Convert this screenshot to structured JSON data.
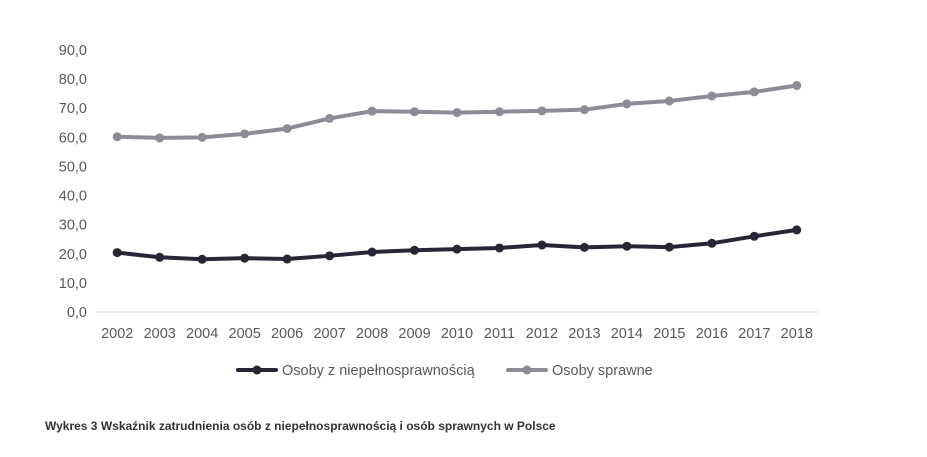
{
  "chart_data": {
    "type": "line",
    "title": "",
    "xlabel": "",
    "ylabel": "",
    "x": [
      "2002",
      "2003",
      "2004",
      "2005",
      "2006",
      "2007",
      "2008",
      "2009",
      "2010",
      "2011",
      "2012",
      "2013",
      "2014",
      "2015",
      "2016",
      "2017",
      "2018"
    ],
    "ylim": [
      0,
      90
    ],
    "y_ticks": [
      "0,0",
      "10,0",
      "20,0",
      "30,0",
      "40,0",
      "50,0",
      "60,0",
      "70,0",
      "80,0",
      "90,0"
    ],
    "grid": false,
    "legend_position": "bottom",
    "series": [
      {
        "name": "Osoby z niepełnosprawnością",
        "color": "#262636",
        "values": [
          20.4,
          18.8,
          18.1,
          18.5,
          18.2,
          19.3,
          20.6,
          21.2,
          21.6,
          22.0,
          23.0,
          22.2,
          22.6,
          22.3,
          23.6,
          26.0,
          28.2
        ]
      },
      {
        "name": "Osoby sprawne",
        "color": "#8c8c94",
        "values": [
          60.2,
          59.8,
          60.0,
          61.2,
          63.0,
          66.5,
          69.0,
          68.8,
          68.5,
          68.8,
          69.1,
          69.5,
          71.5,
          72.5,
          74.2,
          75.6,
          77.8
        ]
      }
    ]
  },
  "caption": "Wykres 3 Wskaźnik zatrudnienia osób z niepełnosprawnością i osób sprawnych w Polsce"
}
